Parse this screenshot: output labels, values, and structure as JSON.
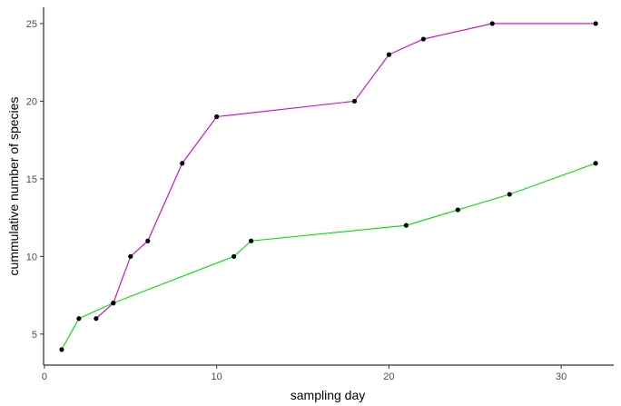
{
  "chart_data": {
    "type": "line",
    "title": "",
    "xlabel": "sampling day",
    "ylabel": "cummulative number of species",
    "xlim": [
      -0.05,
      33.05
    ],
    "ylim": [
      3.0,
      26.05
    ],
    "xticks": [
      0,
      10,
      20,
      30
    ],
    "yticks": [
      5,
      10,
      15,
      20,
      25
    ],
    "grid": false,
    "legend": "none",
    "point_color": "#000000",
    "series": [
      {
        "color": "#cc00cc",
        "x": [
          3,
          4,
          5,
          6,
          8,
          10,
          18,
          20,
          22,
          26,
          32
        ],
        "y": [
          6,
          7,
          10,
          11,
          16,
          19,
          20,
          23,
          24,
          25,
          25
        ]
      },
      {
        "color": "#00e000",
        "x": [
          1,
          2,
          4,
          11,
          12,
          21,
          24,
          27,
          32
        ],
        "y": [
          4,
          6,
          7,
          10,
          11,
          12,
          13,
          14,
          16
        ]
      }
    ]
  }
}
